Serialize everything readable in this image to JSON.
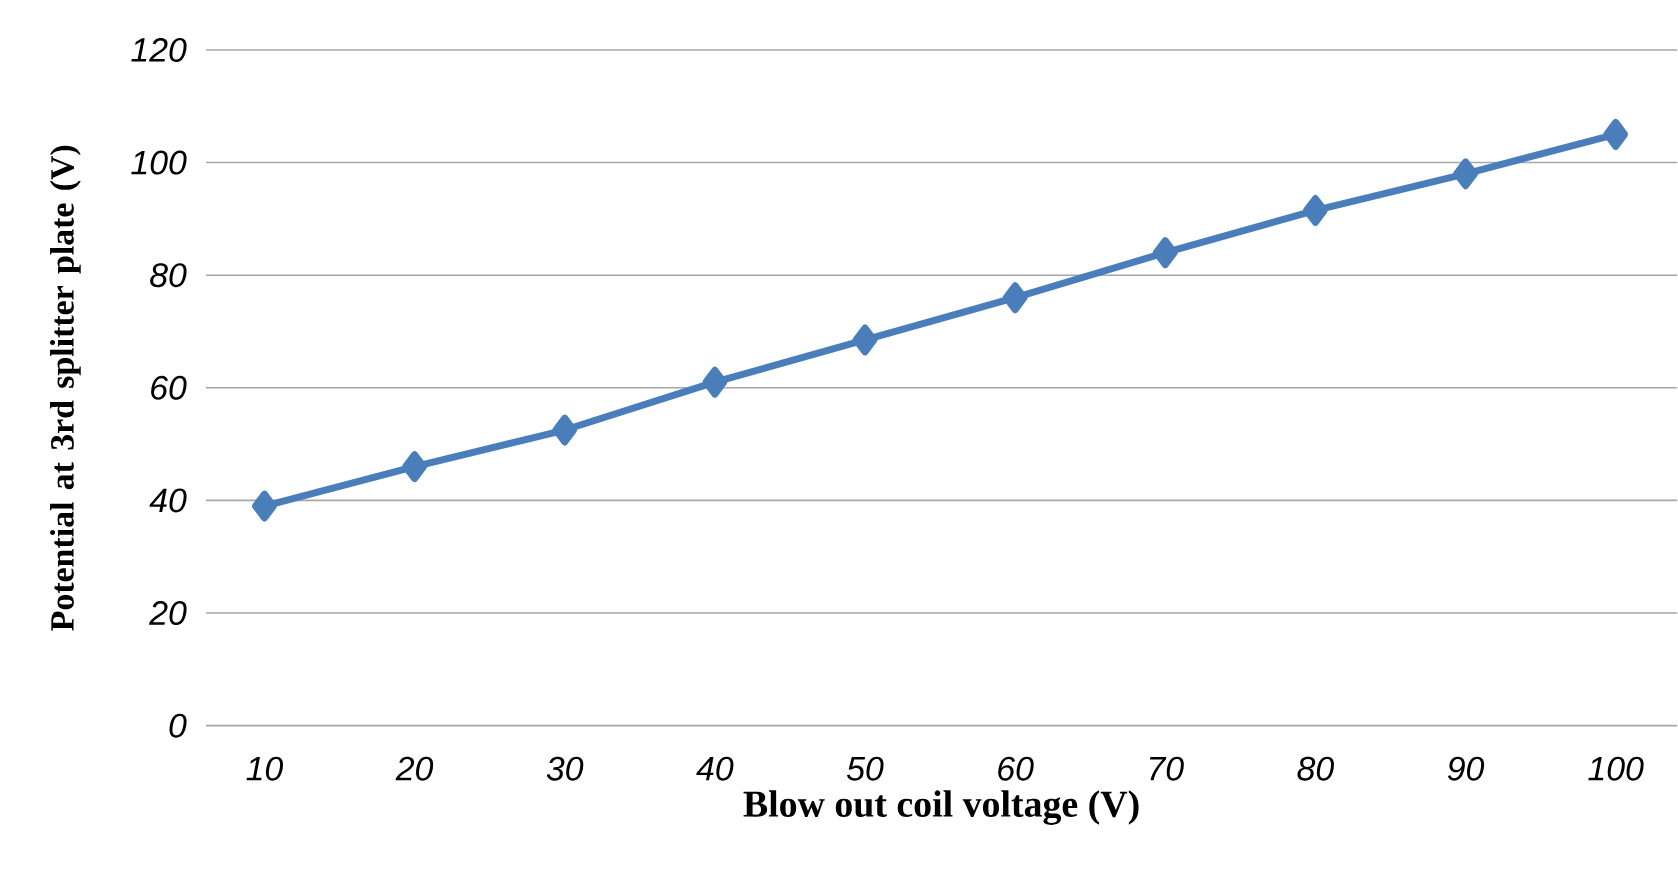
{
  "chart_data": {
    "type": "line",
    "xlabel": "Blow out coil voltage (V)",
    "ylabel": "Potential at 3rd splitter plate (V)",
    "categories": [
      "10",
      "20",
      "30",
      "40",
      "50",
      "60",
      "70",
      "80",
      "90",
      "100"
    ],
    "series": [
      {
        "color": "#4a7ebb",
        "values": [
          39,
          46,
          52.5,
          61,
          68.5,
          76,
          84,
          91.5,
          98,
          105
        ]
      }
    ],
    "ylim": [
      0,
      120
    ],
    "yticks": [
      0,
      20,
      40,
      60,
      80,
      100,
      120
    ],
    "grid": "y",
    "marker": "diamond",
    "line_style": "solid"
  }
}
